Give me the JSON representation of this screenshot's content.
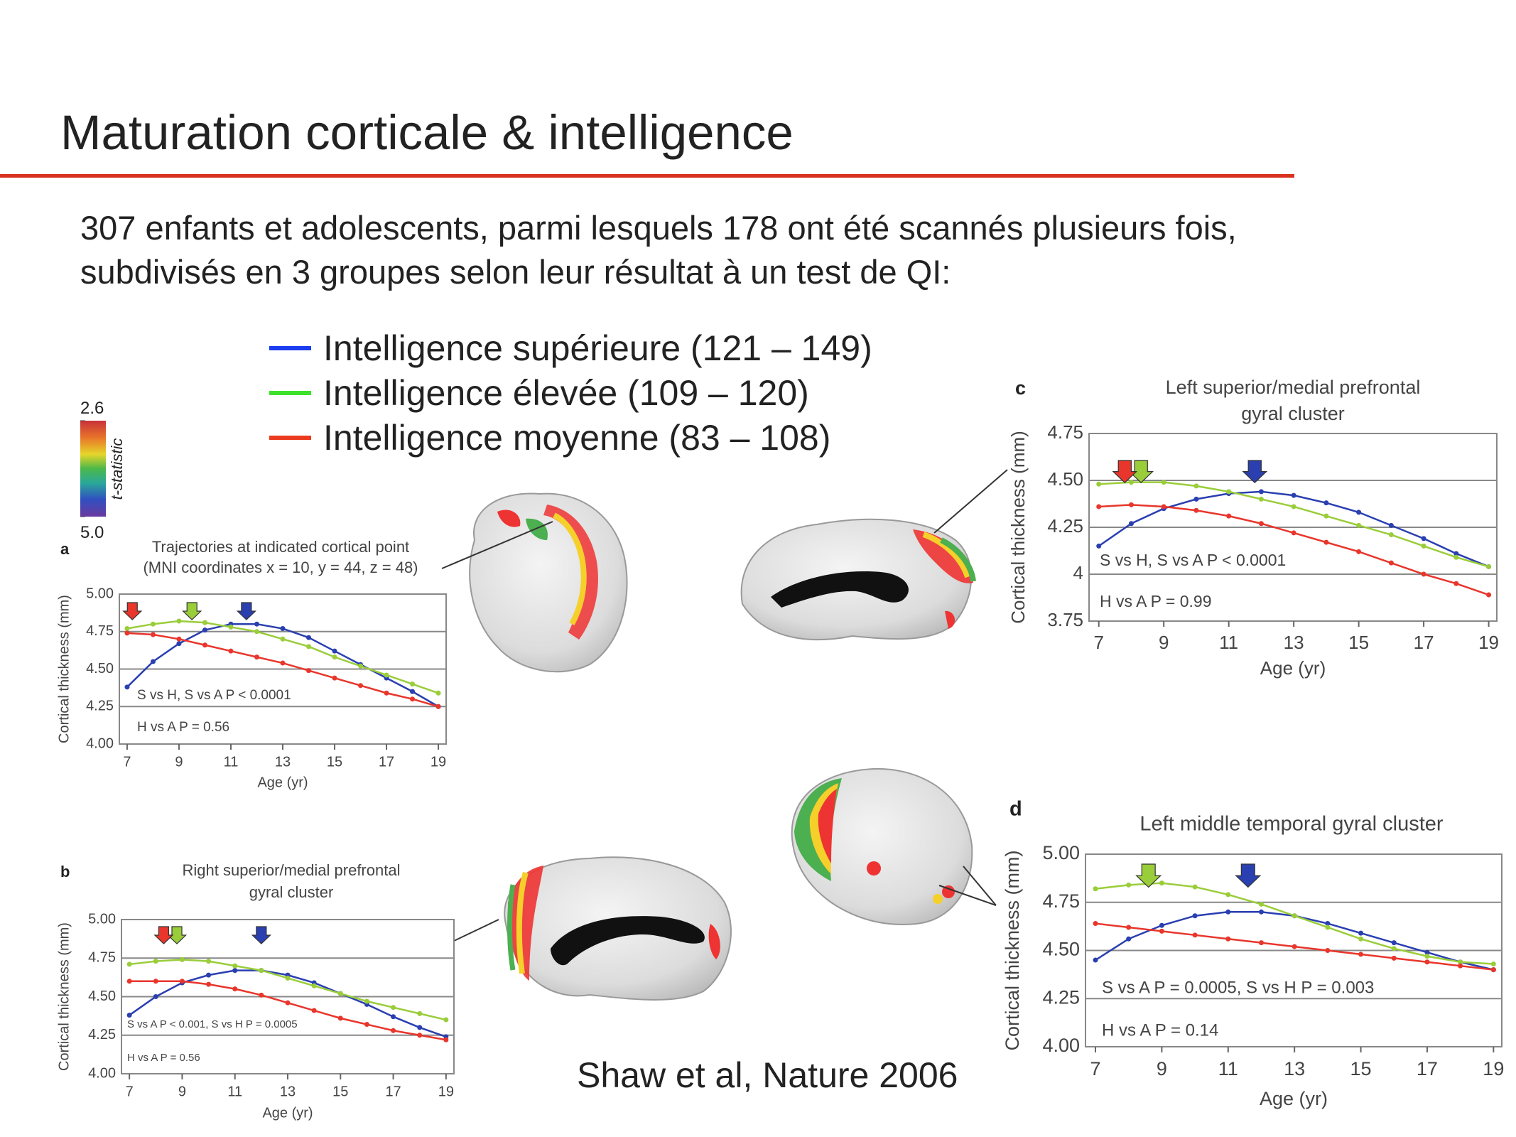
{
  "slide": {
    "title": "Maturation corticale & intelligence",
    "text": [
      "307 enfants et adolescents, parmi lesquels 178 ont été scannés plusieurs fois,",
      "subdivisés en 3 groupes selon leur résultat à un test de QI:"
    ],
    "legend": [
      {
        "label": "Intelligence supérieure (121 – 149)",
        "color": "#1a3df0"
      },
      {
        "label": "Intelligence élevée (109 – 120)",
        "color": "#3ee02a"
      },
      {
        "label": "Intelligence moyenne (83 – 108)",
        "color": "#ec3a1e"
      }
    ],
    "citation": "Shaw et al, Nature 2006",
    "colorbar": {
      "label": "t-statistic",
      "ticks": [
        2.6,
        {
          "value": 5,
          "label": "5.0"
        }
      ]
    }
  },
  "chart_data": [
    {
      "type": "line",
      "panel": "a",
      "title": [
        "Trajectories at indicated cortical point",
        "(MNI coordinates x = 10, y = 44, z = 48)"
      ],
      "x_label": "Age (yr)",
      "y_label": "Cortical thickness (mm)",
      "grid": true,
      "x": [
        7,
        8,
        9,
        10,
        11,
        12,
        13,
        14,
        15,
        16,
        17,
        18,
        19
      ],
      "xlim": [
        6.7,
        19.3
      ],
      "xticks": [
        7,
        9,
        11,
        13,
        15,
        17,
        19
      ],
      "ylim": [
        4,
        5
      ],
      "yticks": [
        {
          "value": 4,
          "label": "4.00"
        },
        {
          "value": 4.25,
          "label": "4.25"
        },
        {
          "value": 4.5,
          "label": "4.50"
        },
        {
          "value": 4.75,
          "label": "4.75"
        },
        {
          "value": 5,
          "label": "5.00"
        }
      ],
      "series": [
        {
          "color": "#2a3fb0",
          "peak": 11.6,
          "values": [
            4.38,
            4.55,
            4.67,
            4.76,
            4.8,
            4.8,
            4.77,
            4.71,
            4.62,
            4.53,
            4.44,
            4.35,
            4.25
          ]
        },
        {
          "color": "#9acd3a",
          "peak": 9.5,
          "values": [
            4.77,
            4.8,
            4.82,
            4.81,
            4.78,
            4.75,
            4.7,
            4.65,
            4.58,
            4.52,
            4.46,
            4.4,
            4.34
          ]
        },
        {
          "color": "#e8362c",
          "peak": 7.2,
          "values": [
            4.74,
            4.73,
            4.7,
            4.66,
            4.62,
            4.58,
            4.54,
            4.49,
            4.44,
            4.39,
            4.34,
            4.3,
            4.25
          ]
        }
      ],
      "annotations": [
        "S vs H, S vs A P < 0.0001",
        "H vs A P = 0.56"
      ]
    },
    {
      "type": "line",
      "panel": "b",
      "title": [
        "Right superior/medial prefrontal",
        "gyral cluster"
      ],
      "x_label": "Age (yr)",
      "y_label": "Cortical thickness (mm)",
      "grid": true,
      "x": [
        7,
        8,
        9,
        10,
        11,
        12,
        13,
        14,
        15,
        16,
        17,
        18,
        19
      ],
      "xlim": [
        6.7,
        19.3
      ],
      "xticks": [
        7,
        9,
        11,
        13,
        15,
        17,
        19
      ],
      "ylim": [
        4,
        5
      ],
      "yticks": [
        {
          "value": 4,
          "label": "4.00"
        },
        {
          "value": 4.25,
          "label": "4.25"
        },
        {
          "value": 4.5,
          "label": "4.50"
        },
        {
          "value": 4.75,
          "label": "4.75"
        },
        {
          "value": 5,
          "label": "5.00"
        }
      ],
      "series": [
        {
          "color": "#2a3fb0",
          "peak": 12.0,
          "values": [
            4.38,
            4.5,
            4.59,
            4.64,
            4.67,
            4.67,
            4.64,
            4.59,
            4.52,
            4.45,
            4.37,
            4.3,
            4.24
          ]
        },
        {
          "color": "#9acd3a",
          "peak": 8.8,
          "values": [
            4.71,
            4.73,
            4.74,
            4.73,
            4.7,
            4.67,
            4.62,
            4.57,
            4.52,
            4.47,
            4.43,
            4.39,
            4.35
          ]
        },
        {
          "color": "#e8362c",
          "peak": 8.3,
          "values": [
            4.6,
            4.6,
            4.6,
            4.58,
            4.55,
            4.51,
            4.46,
            4.41,
            4.36,
            4.32,
            4.28,
            4.25,
            4.22
          ]
        }
      ],
      "annotations": [
        "S vs A P < 0.001, S vs H P = 0.0005",
        "H vs A P = 0.56"
      ]
    },
    {
      "type": "line",
      "panel": "c",
      "title": [
        "Left superior/medial prefrontal",
        "gyral cluster"
      ],
      "x_label": "Age (yr)",
      "y_label": "Cortical thickness (mm)",
      "grid": true,
      "x": [
        7,
        8,
        9,
        10,
        11,
        12,
        13,
        14,
        15,
        16,
        17,
        18,
        19
      ],
      "xlim": [
        6.7,
        19.25
      ],
      "xticks": [
        7,
        9,
        11,
        13,
        15,
        17,
        19
      ],
      "ylim": [
        3.75,
        4.75
      ],
      "yticks": [
        3.75,
        4,
        {
          "value": 4.25,
          "label": "4.25"
        },
        {
          "value": 4.5,
          "label": "4.50"
        },
        4.75
      ],
      "series": [
        {
          "color": "#2a3fb0",
          "peak": 11.8,
          "values": [
            4.15,
            4.27,
            4.35,
            4.4,
            4.43,
            4.44,
            4.42,
            4.38,
            4.33,
            4.26,
            4.19,
            4.11,
            4.04
          ]
        },
        {
          "color": "#9acd3a",
          "peak": 8.3,
          "values": [
            4.48,
            4.49,
            4.49,
            4.47,
            4.44,
            4.4,
            4.36,
            4.31,
            4.26,
            4.21,
            4.15,
            4.09,
            4.04
          ]
        },
        {
          "color": "#e8362c",
          "peak": 7.8,
          "values": [
            4.36,
            4.37,
            4.36,
            4.34,
            4.31,
            4.27,
            4.22,
            4.17,
            4.12,
            4.06,
            4.0,
            3.95,
            3.89
          ]
        }
      ],
      "annotations": [
        "S vs H, S vs A P < 0.0001",
        "H vs A P = 0.99"
      ]
    },
    {
      "type": "line",
      "panel": "d",
      "title": [
        "Left middle temporal gyral cluster"
      ],
      "x_label": "Age (yr)",
      "y_label": "Cortical thickness (mm)",
      "grid": true,
      "x": [
        7,
        8,
        9,
        10,
        11,
        12,
        13,
        14,
        15,
        16,
        17,
        18,
        19
      ],
      "xlim": [
        6.7,
        19.25
      ],
      "xticks": [
        7,
        9,
        11,
        13,
        15,
        17,
        19
      ],
      "ylim": [
        4,
        5
      ],
      "yticks": [
        {
          "value": 4,
          "label": "4.00"
        },
        {
          "value": 4.25,
          "label": "4.25"
        },
        {
          "value": 4.5,
          "label": "4.50"
        },
        {
          "value": 4.75,
          "label": "4.75"
        },
        {
          "value": 5,
          "label": "5.00"
        }
      ],
      "series": [
        {
          "color": "#2a3fb0",
          "peak": 11.6,
          "values": [
            4.45,
            4.56,
            4.63,
            4.68,
            4.7,
            4.7,
            4.68,
            4.64,
            4.59,
            4.54,
            4.49,
            4.44,
            4.4
          ]
        },
        {
          "color": "#9acd3a",
          "peak": 8.6,
          "values": [
            4.82,
            4.84,
            4.85,
            4.83,
            4.79,
            4.74,
            4.68,
            4.62,
            4.56,
            4.51,
            4.47,
            4.44,
            4.43
          ]
        },
        {
          "color": "#e8362c",
          "values": [
            4.64,
            4.62,
            4.6,
            4.58,
            4.56,
            4.54,
            4.52,
            4.5,
            4.48,
            4.46,
            4.44,
            4.42,
            4.4
          ]
        }
      ],
      "annotations": [
        "S vs A P = 0.0005, S vs H  P = 0.003",
        "H vs A P = 0.14"
      ]
    }
  ]
}
